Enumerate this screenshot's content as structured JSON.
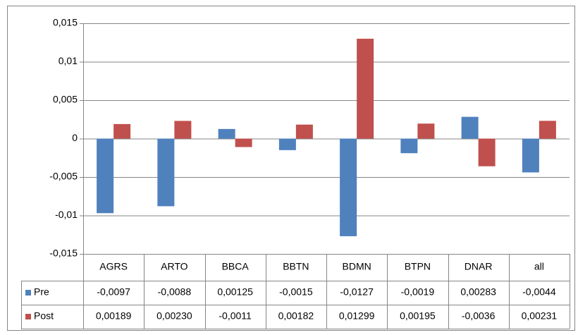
{
  "chart_data": {
    "type": "bar",
    "categories": [
      "AGRS",
      "ARTO",
      "BBCA",
      "BBTN",
      "BDMN",
      "BTPN",
      "DNAR",
      "all"
    ],
    "series": [
      {
        "name": "Pre",
        "color": "#4f81bd",
        "values": [
          -0.0097,
          -0.0088,
          0.00125,
          -0.0015,
          -0.0127,
          -0.0019,
          0.00283,
          -0.0044
        ],
        "value_labels": [
          "-0,0097",
          "-0,0088",
          "0,00125",
          "-0,0015",
          "-0,0127",
          "-0,0019",
          "0,00283",
          "-0,0044"
        ]
      },
      {
        "name": "Post",
        "color": "#c0504d",
        "values": [
          0.00189,
          0.0023,
          -0.0011,
          0.00182,
          0.01299,
          0.00195,
          -0.0036,
          0.00231
        ],
        "value_labels": [
          "0,00189",
          "0,00230",
          "-0,0011",
          "0,00182",
          "0,01299",
          "0,00195",
          "-0,0036",
          "0,00231"
        ]
      }
    ],
    "ylim": [
      -0.015,
      0.015
    ],
    "yticks": [
      {
        "value": 0.015,
        "label": "0,015"
      },
      {
        "value": 0.01,
        "label": "0,01"
      },
      {
        "value": 0.005,
        "label": "0,005"
      },
      0,
      {
        "value": -0.005,
        "label": "-0,005"
      },
      {
        "value": -0.01,
        "label": "-0,01"
      },
      {
        "value": -0.015,
        "label": "-0,015"
      }
    ],
    "grid": true
  }
}
